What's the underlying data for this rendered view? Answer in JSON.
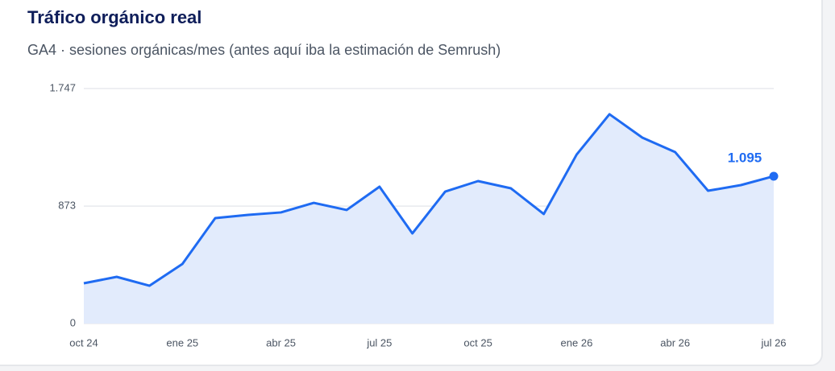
{
  "chart_data": {
    "type": "area",
    "title": "Tráfico orgánico real",
    "subtitle": "GA4 · sesiones orgánicas/mes (antes aquí iba la estimación de Semrush)",
    "categories": [
      "oct 24",
      null,
      null,
      "ene 25",
      null,
      null,
      "abr 25",
      null,
      null,
      "jul 25",
      null,
      null,
      "oct 25",
      null,
      null,
      "ene 26",
      null,
      null,
      "abr 26",
      null,
      null,
      "jul 26"
    ],
    "values": [
      299,
      347,
      281,
      443,
      784,
      808,
      826,
      897,
      844,
      1017,
      670,
      981,
      1059,
      1005,
      814,
      1256,
      1556,
      1382,
      1274,
      987,
      1029,
      1095
    ],
    "value_labels": [
      null,
      null,
      null,
      null,
      null,
      null,
      null,
      null,
      null,
      null,
      null,
      null,
      null,
      null,
      null,
      null,
      null,
      null,
      null,
      null,
      null,
      "1.095"
    ],
    "color": "#1f6bf2",
    "fill_color": "#e2ebfc",
    "ylim": [
      0,
      1747
    ],
    "yticks": [
      0,
      873,
      {
        "value": 1747,
        "label": "1.747"
      }
    ],
    "grid": true
  }
}
